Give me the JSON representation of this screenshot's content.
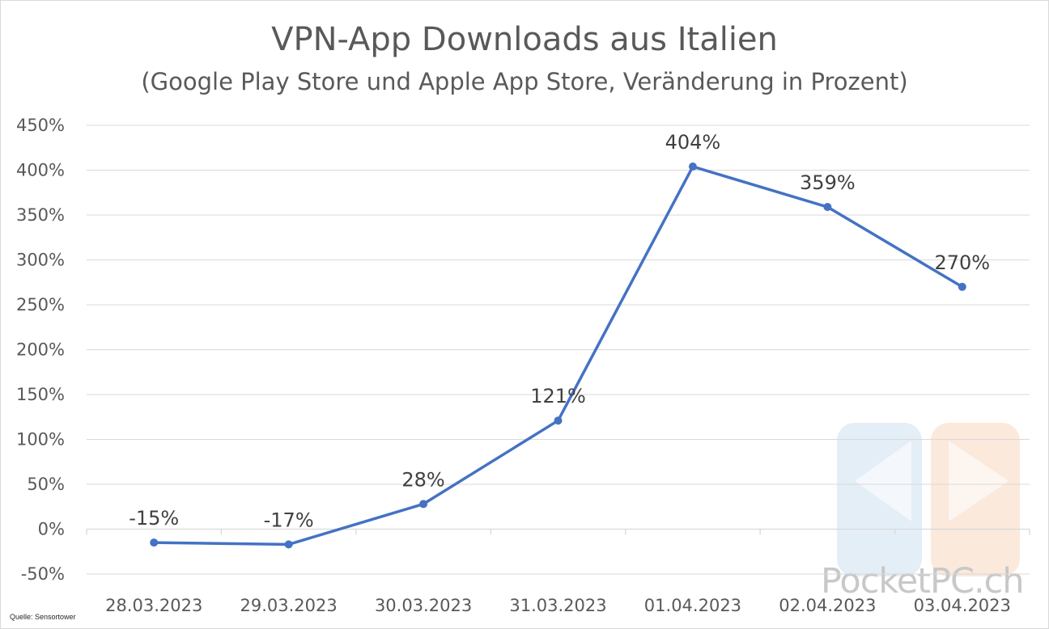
{
  "chart_data": {
    "type": "line",
    "title": "VPN-App Downloads aus Italien",
    "subtitle": "(Google Play Store und Apple App Store, Veränderung in Prozent)",
    "categories": [
      "28.03.2023",
      "29.03.2023",
      "30.03.2023",
      "31.03.2023",
      "01.04.2023",
      "02.04.2023",
      "03.04.2023"
    ],
    "series": [
      {
        "values": [
          -15,
          -17,
          28,
          121,
          404,
          359,
          270
        ],
        "color": "#4472c4"
      }
    ],
    "data_labels": [
      "-15%",
      "-17%",
      "28%",
      "121%",
      "404%",
      "359%",
      "270%"
    ],
    "ylim": [
      -50,
      450
    ],
    "y_ticks": [
      -50,
      0,
      50,
      100,
      150,
      200,
      250,
      300,
      350,
      400,
      450
    ],
    "y_tick_labels": [
      "-50%",
      "0%",
      "50%",
      "100%",
      "150%",
      "200%",
      "250%",
      "300%",
      "350%",
      "400%",
      "450%"
    ],
    "grid": true,
    "xlabel": "",
    "ylabel": ""
  },
  "source": "Quelle: Sensortower",
  "watermark": {
    "text": "PocketPC.ch",
    "icon": "pocketpc-logo-icon"
  },
  "colors": {
    "line": "#4472c4",
    "grid": "#d9d9d9",
    "text": "#595959"
  }
}
